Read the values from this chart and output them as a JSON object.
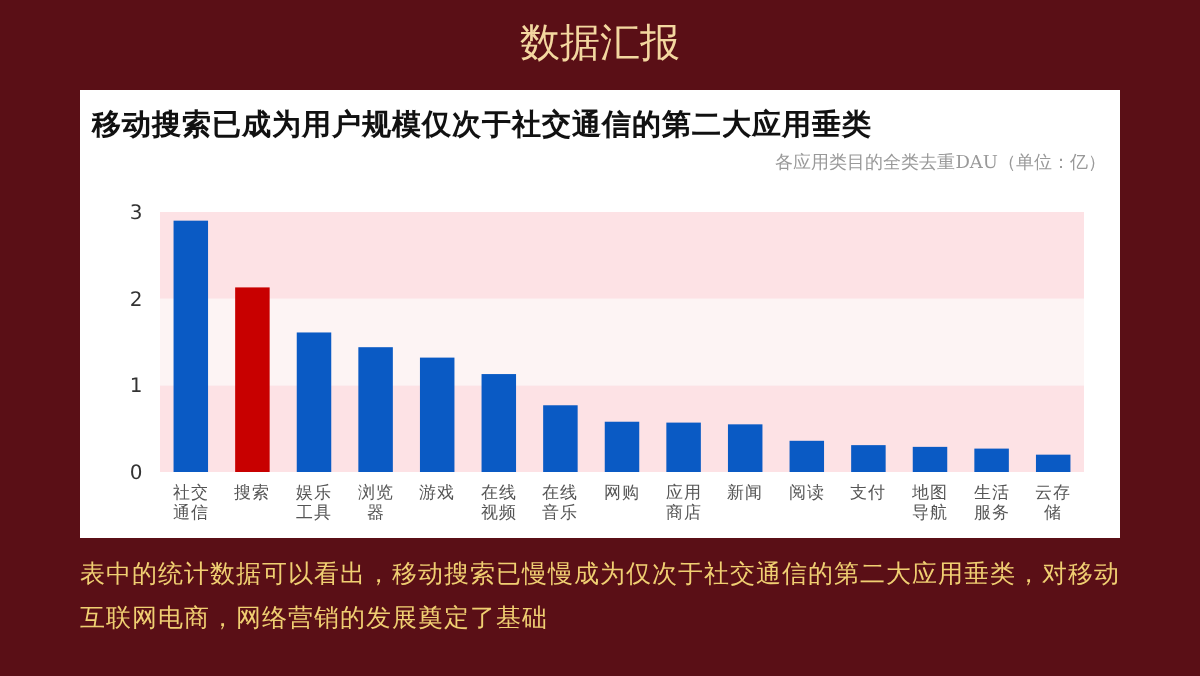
{
  "chart_data": {
    "type": "bar",
    "title": "移动搜索已成为用户规模仅次于社交通信的第二大应用垂类",
    "subtitle": "各应用类目的全类去重DAU（单位：亿）",
    "annotations": [
      "数据汇报",
      "表中的统计数据可以看出，移动搜索已慢慢成为仅次于社交通信的第二大应用垂类，对移动互联网电商，网络营销的发展奠定了基础"
    ],
    "categories": [
      "社交通信",
      "搜索",
      "娱乐工具",
      "浏览器",
      "游戏",
      "在线视频",
      "在线音乐",
      "网购",
      "应用商店",
      "新闻",
      "阅读",
      "支付",
      "地图导航",
      "生活服务",
      "云存储"
    ],
    "values": [
      2.9,
      2.13,
      1.61,
      1.44,
      1.32,
      1.13,
      0.77,
      0.58,
      0.57,
      0.55,
      0.36,
      0.31,
      0.29,
      0.27,
      0.2
    ],
    "colors": [
      "#0a5ac4",
      "#c80000",
      "#0a5ac4",
      "#0a5ac4",
      "#0a5ac4",
      "#0a5ac4",
      "#0a5ac4",
      "#0a5ac4",
      "#0a5ac4",
      "#0a5ac4",
      "#0a5ac4",
      "#0a5ac4",
      "#0a5ac4",
      "#0a5ac4",
      "#0a5ac4"
    ],
    "ylim": [
      0,
      3
    ],
    "yticks": [
      0,
      1,
      2,
      3
    ],
    "grid": false,
    "bands": [
      {
        "axis": "y",
        "from": 0,
        "to": 1,
        "color": "#fde2e5"
      },
      {
        "axis": "y",
        "from": 1,
        "to": 2,
        "color": "#fdf4f4"
      },
      {
        "axis": "y",
        "from": 2,
        "to": 3,
        "color": "#fde2e5"
      }
    ]
  }
}
